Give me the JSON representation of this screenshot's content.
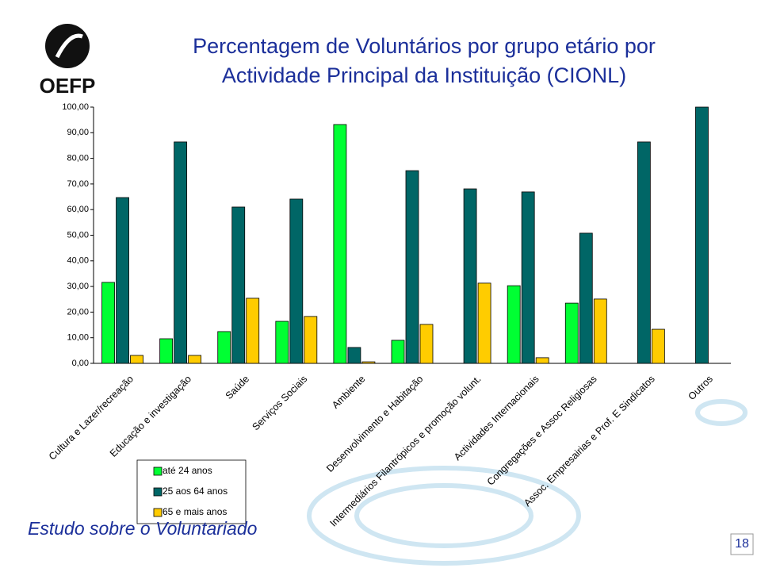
{
  "logo": "OEFP",
  "footer": "Estudo sobre o Voluntariado",
  "page_number": "18",
  "chart_data": {
    "type": "bar",
    "title": [
      "Percentagem de Voluntários por grupo etário por",
      "Actividade Principal da Instituição (CIONL)"
    ],
    "categories": [
      "Cultura e Lazer/recreação",
      "Educação e investigação",
      "Saúde",
      "Serviços Sociais",
      "Ambiente",
      "Desenvolvimento e Habitação",
      "Intermediários Filantrópicos e promoção volunt.",
      "Actividades Internacionais",
      "Congregações e Assoc Religiosas",
      "Assoc. Empresairias e Prof. E Sindicatos",
      "Outros"
    ],
    "series": [
      {
        "name": "até 24 anos",
        "color": "#00ff33",
        "values": [
          31.6,
          9.6,
          12.4,
          16.4,
          93.2,
          9.0,
          0,
          30.3,
          23.5,
          0,
          0
        ]
      },
      {
        "name": "25 aos 64 anos",
        "color": "#006666",
        "values": [
          64.7,
          86.4,
          61.0,
          64.1,
          6.2,
          75.2,
          68.1,
          66.9,
          50.8,
          86.4,
          100
        ]
      },
      {
        "name": "65 e mais anos",
        "color": "#ffcc00",
        "values": [
          3.1,
          3.1,
          25.4,
          18.3,
          0.6,
          15.2,
          31.3,
          2.2,
          25.1,
          13.3,
          0
        ]
      }
    ],
    "ylim": [
      0,
      100
    ],
    "yticks": [
      {
        "value": 0,
        "label": "0,00"
      },
      {
        "value": 10,
        "label": "10,00"
      },
      {
        "value": 20,
        "label": "20,00"
      },
      {
        "value": 30,
        "label": "30,00"
      },
      {
        "value": 40,
        "label": "40,00"
      },
      {
        "value": 50,
        "label": "50,00"
      },
      {
        "value": 60,
        "label": "60,00"
      },
      {
        "value": 70,
        "label": "70,00"
      },
      {
        "value": 80,
        "label": "80,00"
      },
      {
        "value": 90,
        "label": "90,00"
      },
      {
        "value": 100,
        "label": "100,00"
      }
    ]
  }
}
